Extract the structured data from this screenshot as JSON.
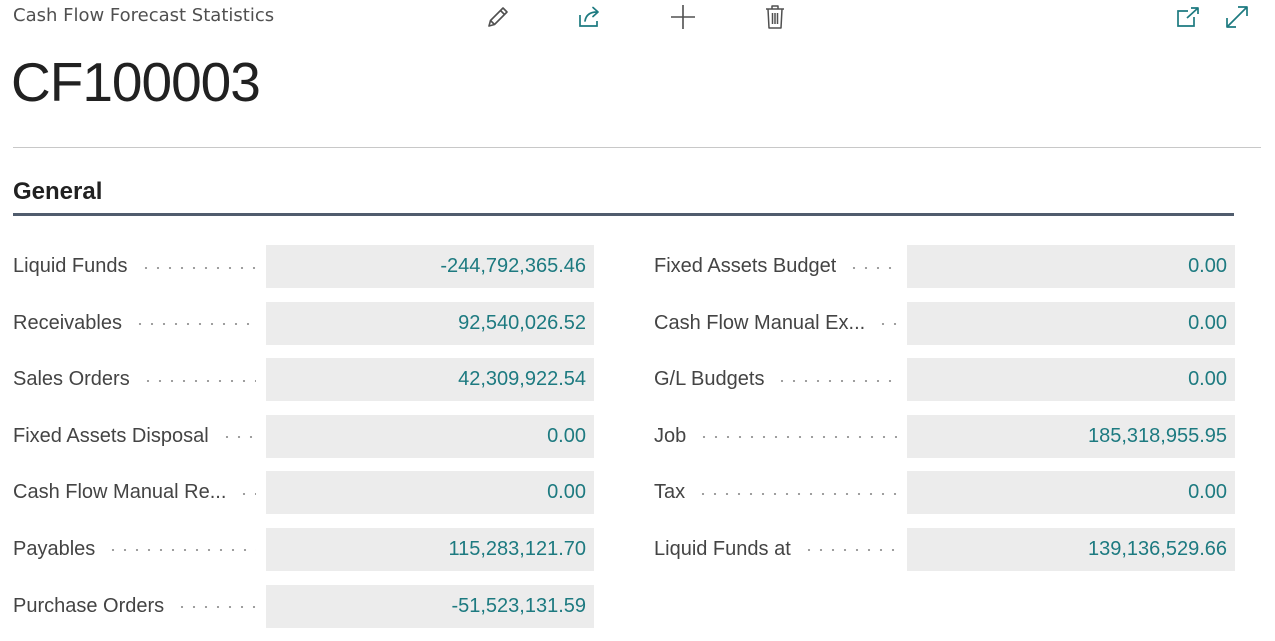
{
  "header": {
    "caption": "Cash Flow Forecast Statistics",
    "actions": [
      {
        "name": "edit",
        "icon": "pencil-icon"
      },
      {
        "name": "share",
        "icon": "share-icon"
      },
      {
        "name": "new",
        "icon": "plus-icon"
      },
      {
        "name": "delete",
        "icon": "trash-icon"
      },
      {
        "name": "open-new-window",
        "icon": "pop-out-icon"
      },
      {
        "name": "expand",
        "icon": "expand-icon"
      }
    ]
  },
  "record": {
    "title": "CF100003"
  },
  "section": {
    "title": "General"
  },
  "fields_left": [
    {
      "label": "Liquid Funds",
      "value": "-244,792,365.46"
    },
    {
      "label": "Receivables",
      "value": "92,540,026.52"
    },
    {
      "label": "Sales Orders",
      "value": "42,309,922.54"
    },
    {
      "label": "Fixed Assets Disposal",
      "value": "0.00"
    },
    {
      "label": "Cash Flow Manual Re...",
      "value": "0.00"
    },
    {
      "label": "Payables",
      "value": "115,283,121.70"
    },
    {
      "label": "Purchase Orders",
      "value": "-51,523,131.59"
    }
  ],
  "fields_right": [
    {
      "label": "Fixed Assets Budget",
      "value": "0.00"
    },
    {
      "label": "Cash Flow Manual Ex...",
      "value": "0.00"
    },
    {
      "label": "G/L Budgets",
      "value": "0.00"
    },
    {
      "label": "Job",
      "value": "185,318,955.95"
    },
    {
      "label": "Tax",
      "value": "0.00"
    },
    {
      "label": "Liquid Funds at",
      "value": "139,136,529.66"
    }
  ],
  "colors": {
    "accent": "#1d7a80",
    "value_background": "#ececec",
    "section_underline": "#505c6d"
  }
}
